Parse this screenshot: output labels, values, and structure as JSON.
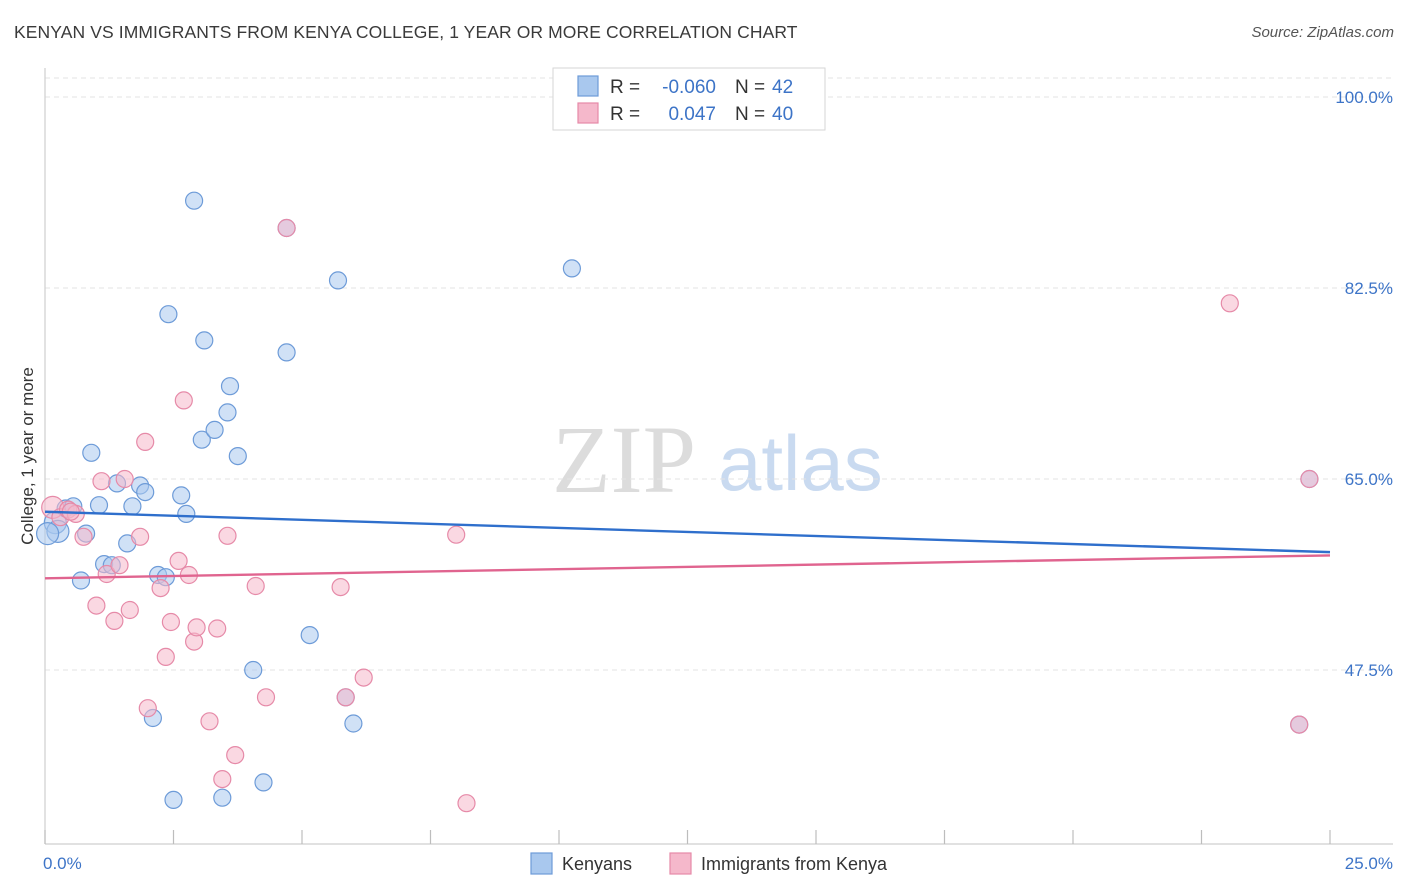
{
  "chart_data": {
    "type": "scatter",
    "title": "KENYAN VS IMMIGRANTS FROM KENYA COLLEGE, 1 YEAR OR MORE CORRELATION CHART",
    "source": "Source: ZipAtlas.com",
    "ylabel": "College, 1 year or more",
    "xlim": [
      0,
      25
    ],
    "ylim": [
      32,
      102
    ],
    "x_tick_labels": [
      "0.0%",
      "25.0%"
    ],
    "y_ticks": [
      100,
      82.5,
      65,
      47.5
    ],
    "y_tick_labels": [
      "100.0%",
      "82.5%",
      "65.0%",
      "47.5%"
    ],
    "watermark": {
      "zip": "ZIP",
      "atlas": "atlas"
    },
    "legend": [
      {
        "r_label": "R =",
        "r_value": "-0.060",
        "n_label": "N =",
        "n_value": "42"
      },
      {
        "r_label": "R =",
        "r_value": "0.047",
        "n_label": "N =",
        "n_value": "40"
      }
    ],
    "colors": {
      "blue_fill": "#a9c8ee",
      "blue_stroke": "#6d9bd8",
      "blue_line": "#2f6fcc",
      "pink_fill": "#f5b8cb",
      "pink_stroke": "#e68aa8",
      "pink_line": "#e0648f",
      "tick_text": "#3d74c7",
      "grid": "#e3e3e3"
    },
    "series": [
      {
        "name": "Kenyans",
        "trend": [
          [
            0,
            62.0
          ],
          [
            25,
            58.3
          ]
        ],
        "points": [
          [
            0.2,
            61.0
          ],
          [
            0.25,
            60.2
          ],
          [
            0.4,
            62.3
          ],
          [
            0.55,
            62.5
          ],
          [
            0.7,
            55.7
          ],
          [
            0.8,
            60.0
          ],
          [
            0.9,
            67.4
          ],
          [
            1.05,
            62.6
          ],
          [
            1.15,
            57.2
          ],
          [
            1.3,
            57.1
          ],
          [
            1.4,
            64.6
          ],
          [
            1.6,
            59.1
          ],
          [
            1.7,
            62.5
          ],
          [
            1.85,
            64.4
          ],
          [
            1.95,
            63.8
          ],
          [
            2.1,
            43.1
          ],
          [
            2.2,
            56.2
          ],
          [
            2.35,
            56.0
          ],
          [
            2.4,
            80.1
          ],
          [
            2.5,
            35.6
          ],
          [
            2.65,
            63.5
          ],
          [
            2.75,
            61.8
          ],
          [
            2.9,
            90.5
          ],
          [
            3.05,
            68.6
          ],
          [
            3.1,
            77.7
          ],
          [
            3.3,
            69.5
          ],
          [
            3.45,
            35.8
          ],
          [
            3.55,
            71.1
          ],
          [
            3.6,
            73.5
          ],
          [
            3.75,
            67.1
          ],
          [
            4.05,
            47.5
          ],
          [
            4.25,
            37.2
          ],
          [
            4.7,
            76.6
          ],
          [
            5.15,
            50.7
          ],
          [
            5.7,
            83.2
          ],
          [
            5.85,
            45.0
          ],
          [
            6.0,
            42.6
          ],
          [
            10.25,
            84.3
          ],
          [
            24.4,
            42.5
          ],
          [
            24.6,
            65.0
          ],
          [
            4.7,
            88.0
          ],
          [
            0.05,
            60.0
          ]
        ]
      },
      {
        "name": "Immigrants from Kenya",
        "trend": [
          [
            0,
            55.9
          ],
          [
            25,
            58.0
          ]
        ],
        "points": [
          [
            0.15,
            62.4
          ],
          [
            0.3,
            61.5
          ],
          [
            0.45,
            62.2
          ],
          [
            0.6,
            61.8
          ],
          [
            0.75,
            59.7
          ],
          [
            1.0,
            53.4
          ],
          [
            1.1,
            64.8
          ],
          [
            1.2,
            56.3
          ],
          [
            1.35,
            52.0
          ],
          [
            1.45,
            57.1
          ],
          [
            1.55,
            65.0
          ],
          [
            1.65,
            53.0
          ],
          [
            1.85,
            59.7
          ],
          [
            1.95,
            68.4
          ],
          [
            2.25,
            55.0
          ],
          [
            2.35,
            48.7
          ],
          [
            2.45,
            51.9
          ],
          [
            2.6,
            57.5
          ],
          [
            2.7,
            72.2
          ],
          [
            2.8,
            56.2
          ],
          [
            2.9,
            50.1
          ],
          [
            2.95,
            51.4
          ],
          [
            3.2,
            42.8
          ],
          [
            3.35,
            51.3
          ],
          [
            3.45,
            37.5
          ],
          [
            3.55,
            59.8
          ],
          [
            3.7,
            39.7
          ],
          [
            4.1,
            55.2
          ],
          [
            4.3,
            45.0
          ],
          [
            4.7,
            88.0
          ],
          [
            5.75,
            55.1
          ],
          [
            5.85,
            45.0
          ],
          [
            6.2,
            46.8
          ],
          [
            8.0,
            59.9
          ],
          [
            8.2,
            35.3
          ],
          [
            23.05,
            81.1
          ],
          [
            24.4,
            42.5
          ],
          [
            24.6,
            65.0
          ],
          [
            0.5,
            62.0
          ],
          [
            2.0,
            44.0
          ]
        ]
      }
    ]
  }
}
